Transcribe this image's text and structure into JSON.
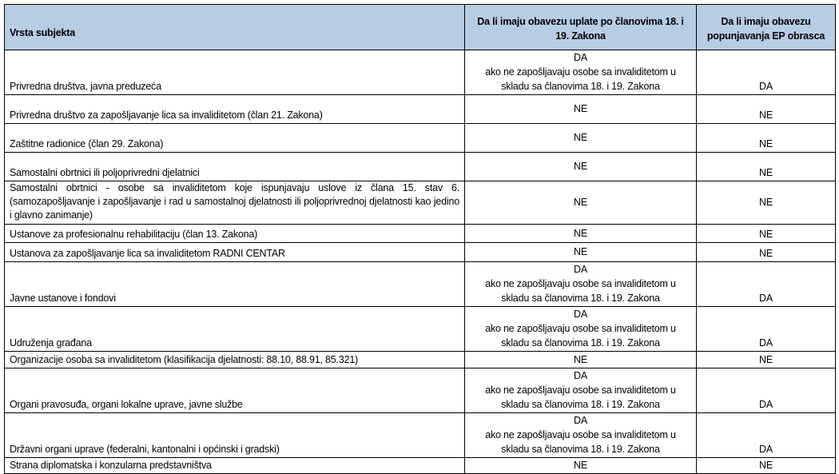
{
  "header": {
    "col1": "Vrsta subjekta",
    "col2": "Da li imaju obavezu uplate po članovima 18. i 19. Zakona",
    "col3": "Da li imaju obavezu popunjavanja EP obrasca"
  },
  "rows": [
    {
      "subject": "Privredna društva, javna preduzeća",
      "payment": "DA",
      "payment_note": "ako ne zapošljavaju osobe sa invaliditetom u skladu sa članovima 18. i 19. Zakona",
      "form": "DA"
    },
    {
      "subject": "Privredna društvo za zapošljavanje lica sa invaliditetom (član 21. Zakona)",
      "payment": "NE",
      "form": "NE"
    },
    {
      "subject": "Zaštitne radionice (član 29. Zakona)",
      "payment": "NE",
      "form": "NE"
    },
    {
      "subject": "Samostalni obrtnici ili poljoprivredni djelatnici",
      "payment": "NE",
      "form": "NE"
    },
    {
      "subject": "Samostalni obrtnici - osobe sa invaliditetom koje ispunjavaju uslove iz člana 15. stav 6. (samozapošljavanje i zapošljavanje i rad u samostalnoj djelatnosti ili poljoprivrednoj djelatnosti kao jedino i glavno zanimanje)",
      "payment": "NE",
      "form": "NE"
    },
    {
      "subject": "Ustanove za profesionalnu rehabilitaciju (član 13. Zakona)",
      "payment": "NE",
      "form": "NE"
    },
    {
      "subject": "Ustanova za zapošljavanje lica sa invaliditetom RADNI CENTAR",
      "payment": "NE",
      "form": "NE"
    },
    {
      "subject": "Javne ustanove i fondovi",
      "payment": "DA",
      "payment_note": "ako ne zapošljavaju osobe sa invaliditetom u skladu sa članovima 18. i 19. Zakona",
      "form": "DA"
    },
    {
      "subject": "Udruženja građana",
      "payment": "DA",
      "payment_note": "ako ne zapošljavaju osobe sa invaliditetom u skladu sa članovima 18. i 19. Zakona",
      "form": "DA"
    },
    {
      "subject": "Organizacije osoba sa invaliditetom (klasifikacija djelatnosti: 88.10, 88.91, 85.321)",
      "payment": "NE",
      "form": "NE"
    },
    {
      "subject": "Organi pravosuđa, organi lokalne uprave, javne službe",
      "payment": "DA",
      "payment_note": "ako ne zapošljavaju osobe sa invaliditetom u skladu sa članovima 18. i 19. Zakona",
      "form": "DA"
    },
    {
      "subject": "Državni organi uprave (federalni, kantonalni i općinski i gradski)",
      "payment": "DA",
      "payment_note": "ako ne zapošljavaju osobe sa invaliditetom u skladu sa članovima 18. i 19. Zakona",
      "form": "DA"
    },
    {
      "subject": "Strana diplomatska i konzularna predstavništva",
      "payment": "NE",
      "form": "NE"
    }
  ],
  "colors": {
    "header_bg": "#b8cce4"
  }
}
